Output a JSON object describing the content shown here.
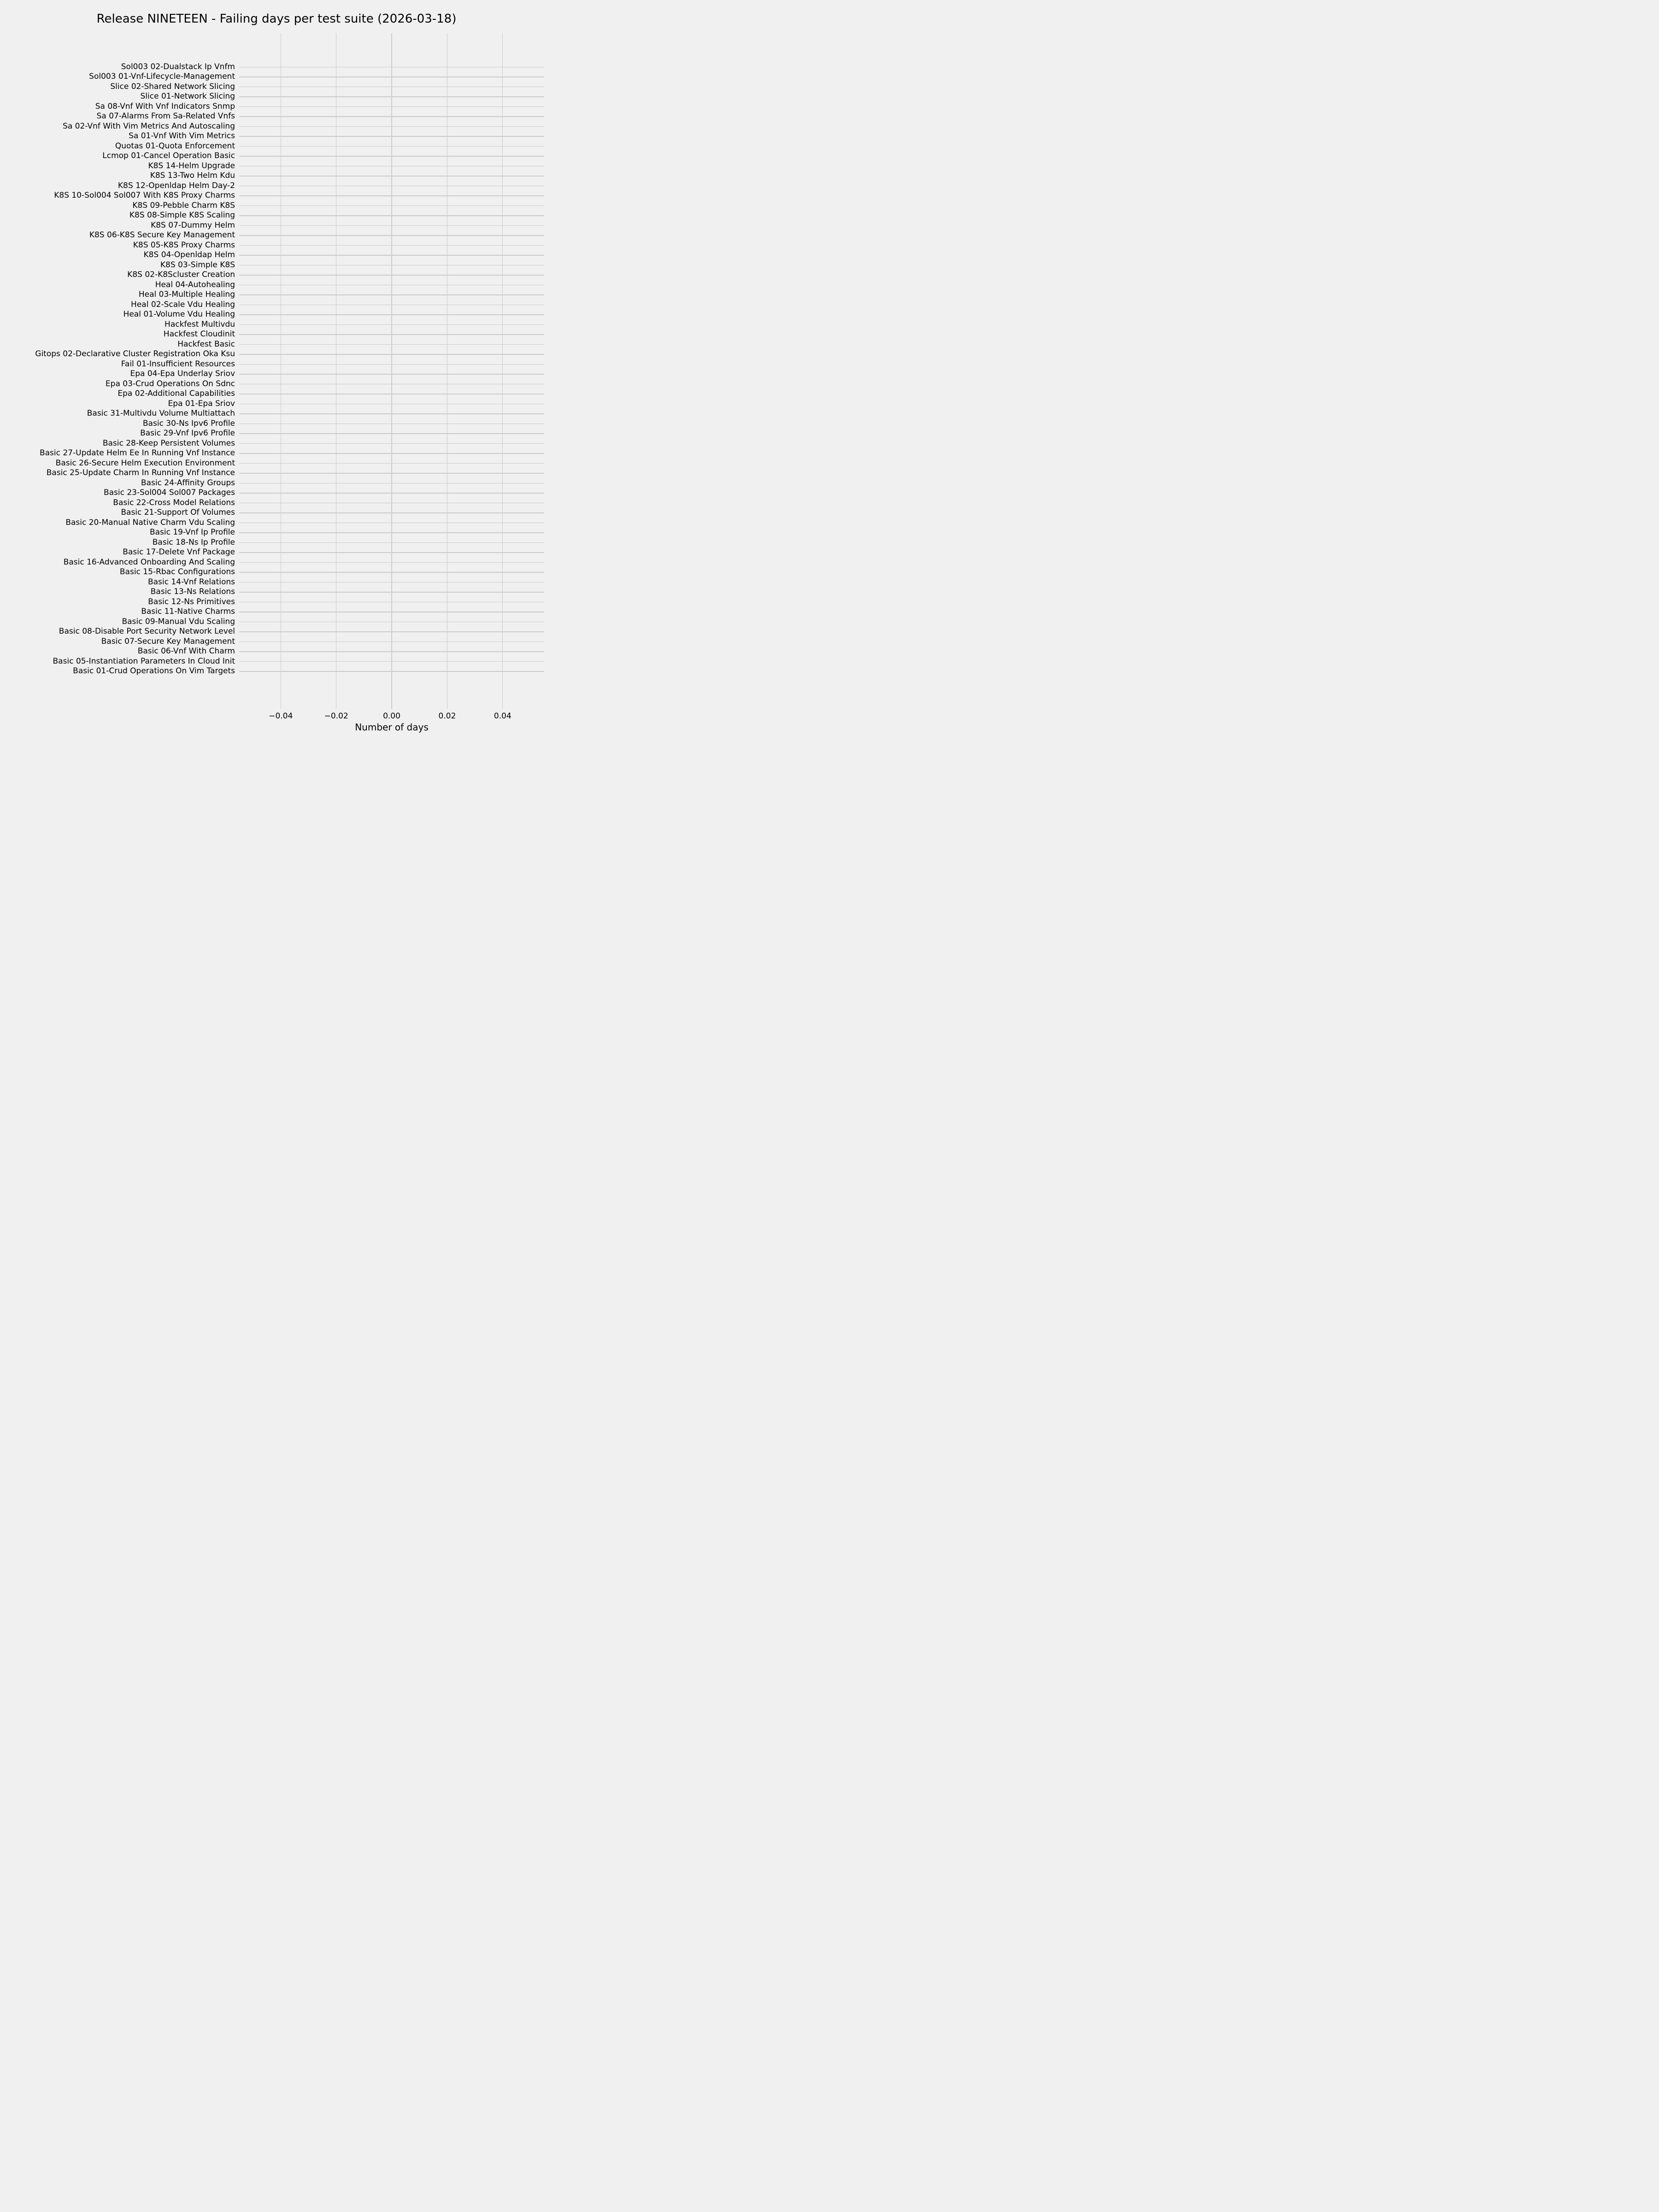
{
  "title": "Release NINETEEN - Failing days per test suite (2026-03-18)",
  "chart_data": {
    "type": "bar",
    "orientation": "horizontal",
    "title": "Release NINETEEN - Failing days per test suite (2026-03-18)",
    "xlabel": "Number of days",
    "ylabel": "",
    "grid": true,
    "xlim": [
      -0.055,
      0.055
    ],
    "x_ticks": [
      -0.04,
      -0.02,
      0.0,
      0.02,
      0.04
    ],
    "x_tick_labels": [
      "−0.04",
      "−0.02",
      "0.00",
      "0.02",
      "0.04"
    ],
    "categories": [
      "Sol003 02-Dualstack Ip Vnfm",
      "Sol003 01-Vnf-Lifecycle-Management",
      "Slice 02-Shared Network Slicing",
      "Slice 01-Network Slicing",
      "Sa 08-Vnf With Vnf Indicators Snmp",
      "Sa 07-Alarms From Sa-Related Vnfs",
      "Sa 02-Vnf With Vim Metrics And Autoscaling",
      "Sa 01-Vnf With Vim Metrics",
      "Quotas 01-Quota Enforcement",
      "Lcmop 01-Cancel Operation Basic",
      "K8S 14-Helm Upgrade",
      "K8S 13-Two Helm Kdu",
      "K8S 12-Openldap Helm Day-2",
      "K8S 10-Sol004 Sol007 With K8S Proxy Charms",
      "K8S 09-Pebble Charm K8S",
      "K8S 08-Simple K8S Scaling",
      "K8S 07-Dummy Helm",
      "K8S 06-K8S Secure Key Management",
      "K8S 05-K8S Proxy Charms",
      "K8S 04-Openldap Helm",
      "K8S 03-Simple K8S",
      "K8S 02-K8Scluster Creation",
      "Heal 04-Autohealing",
      "Heal 03-Multiple Healing",
      "Heal 02-Scale Vdu Healing",
      "Heal 01-Volume Vdu Healing",
      "Hackfest Multivdu",
      "Hackfest Cloudinit",
      "Hackfest Basic",
      "Gitops 02-Declarative Cluster Registration Oka Ksu",
      "Fail 01-Insufficient Resources",
      "Epa 04-Epa Underlay Sriov",
      "Epa 03-Crud Operations On Sdnc",
      "Epa 02-Additional Capabilities",
      "Epa 01-Epa Sriov",
      "Basic 31-Multivdu Volume Multiattach",
      "Basic 30-Ns Ipv6 Profile",
      "Basic 29-Vnf Ipv6 Profile",
      "Basic 28-Keep Persistent Volumes",
      "Basic 27-Update Helm Ee In Running Vnf Instance",
      "Basic 26-Secure Helm Execution Environment",
      "Basic 25-Update Charm In Running Vnf Instance",
      "Basic 24-Affinity Groups",
      "Basic 23-Sol004 Sol007 Packages",
      "Basic 22-Cross Model Relations",
      "Basic 21-Support Of Volumes",
      "Basic 20-Manual Native Charm Vdu Scaling",
      "Basic 19-Vnf Ip Profile",
      "Basic 18-Ns Ip Profile",
      "Basic 17-Delete Vnf Package",
      "Basic 16-Advanced Onboarding And Scaling",
      "Basic 15-Rbac Configurations",
      "Basic 14-Vnf Relations",
      "Basic 13-Ns Relations",
      "Basic 12-Ns Primitives",
      "Basic 11-Native Charms",
      "Basic 09-Manual Vdu Scaling",
      "Basic 08-Disable Port Security Network Level",
      "Basic 07-Secure Key Management",
      "Basic 06-Vnf With Charm",
      "Basic 05-Instantiation Parameters In Cloud Init",
      "Basic 01-Crud Operations On Vim Targets"
    ],
    "values": [
      0,
      0,
      0,
      0,
      0,
      0,
      0,
      0,
      0,
      0,
      0,
      0,
      0,
      0,
      0,
      0,
      0,
      0,
      0,
      0,
      0,
      0,
      0,
      0,
      0,
      0,
      0,
      0,
      0,
      0,
      0,
      0,
      0,
      0,
      0,
      0,
      0,
      0,
      0,
      0,
      0,
      0,
      0,
      0,
      0,
      0,
      0,
      0,
      0,
      0,
      0,
      0,
      0,
      0,
      0,
      0,
      0,
      0,
      0,
      0,
      0,
      0
    ],
    "legend": null,
    "colors": {
      "figure_background": "#f0f0f0",
      "axes_background": "#f0f0f0",
      "grid": "#cbcbcb",
      "text": "#000000",
      "bar": "#008fd5"
    }
  }
}
